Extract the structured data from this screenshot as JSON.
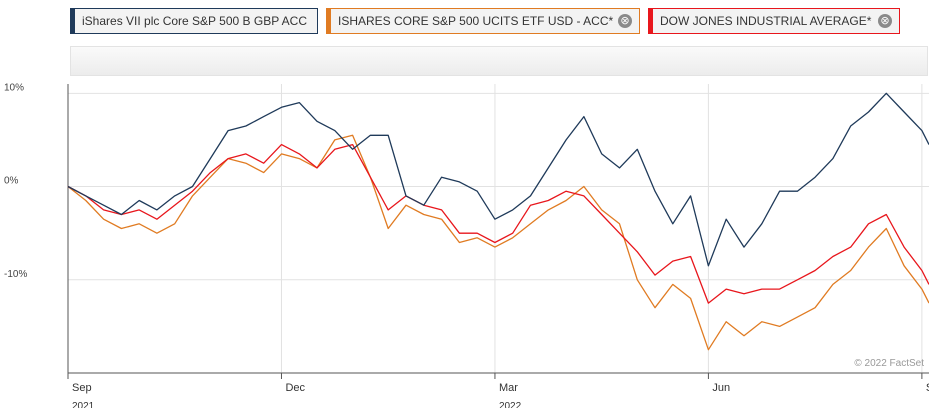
{
  "legend": {
    "items": [
      {
        "label": "iShares VII plc Core S&P 500 B GBP ACC",
        "color": "#1f3a5a",
        "closable": false
      },
      {
        "label": "ISHARES CORE S&P 500 UCITS ETF USD - ACC*",
        "color": "#e07b22",
        "closable": true
      },
      {
        "label": "DOW JONES INDUSTRIAL AVERAGE*",
        "color": "#e8161c",
        "closable": true
      }
    ],
    "close_glyph": "⊗"
  },
  "chart_data": {
    "type": "line",
    "title": "",
    "xlabel": "",
    "ylabel": "",
    "ylim": [
      -20,
      11
    ],
    "xlim": [
      0,
      12.1
    ],
    "x_ticks": [
      {
        "x": 0,
        "label": "Sep",
        "year": "2021"
      },
      {
        "x": 3,
        "label": "Dec",
        "year": ""
      },
      {
        "x": 6,
        "label": "Mar",
        "year": "2022"
      },
      {
        "x": 9,
        "label": "Jun",
        "year": ""
      },
      {
        "x": 12,
        "label": "Sep",
        "year": ""
      }
    ],
    "y_ticks": [
      {
        "value": 10,
        "label": "10%"
      },
      {
        "value": 0,
        "label": "0%"
      },
      {
        "value": -10,
        "label": "-10%"
      }
    ],
    "grid": true,
    "credit": "© 2022 FactSet",
    "series": [
      {
        "name": "iShares VII plc Core S&P 500 B GBP ACC",
        "color": "#1f3a5a",
        "x": [
          0,
          0.25,
          0.5,
          0.75,
          1,
          1.25,
          1.5,
          1.75,
          2,
          2.25,
          2.5,
          2.75,
          3,
          3.25,
          3.5,
          3.75,
          4,
          4.25,
          4.5,
          4.75,
          5,
          5.25,
          5.5,
          5.75,
          6,
          6.25,
          6.5,
          6.75,
          7,
          7.25,
          7.5,
          7.75,
          8,
          8.25,
          8.5,
          8.75,
          9,
          9.25,
          9.5,
          9.75,
          10,
          10.25,
          10.5,
          10.75,
          11,
          11.25,
          11.5,
          11.75,
          12,
          12.1
        ],
        "values": [
          0,
          -1,
          -2,
          -3,
          -1.5,
          -2.5,
          -1,
          0,
          3,
          6,
          6.5,
          7.5,
          8.5,
          9,
          7,
          6,
          4,
          5.5,
          5.5,
          -1,
          -2,
          1,
          0.5,
          -0.5,
          -3.5,
          -2.5,
          -1,
          2,
          5,
          7.5,
          3.5,
          2,
          4,
          -0.5,
          -4,
          -1,
          -8.5,
          -3.5,
          -6.5,
          -4,
          -0.5,
          -0.5,
          1,
          3,
          6.5,
          8,
          10,
          8,
          6,
          4.5
        ]
      },
      {
        "name": "ISHARES CORE S&P 500 UCITS ETF USD - ACC*",
        "color": "#e07b22",
        "x": [
          0,
          0.25,
          0.5,
          0.75,
          1,
          1.25,
          1.5,
          1.75,
          2,
          2.25,
          2.5,
          2.75,
          3,
          3.25,
          3.5,
          3.75,
          4,
          4.25,
          4.5,
          4.75,
          5,
          5.25,
          5.5,
          5.75,
          6,
          6.25,
          6.5,
          6.75,
          7,
          7.25,
          7.5,
          7.75,
          8,
          8.25,
          8.5,
          8.75,
          9,
          9.25,
          9.5,
          9.75,
          10,
          10.25,
          10.5,
          10.75,
          11,
          11.25,
          11.5,
          11.75,
          12,
          12.1
        ],
        "values": [
          0,
          -1.5,
          -3.5,
          -4.5,
          -4,
          -5,
          -4,
          -1,
          1,
          3,
          2.5,
          1.5,
          3.5,
          3,
          2,
          5,
          5.5,
          1,
          -4.5,
          -2,
          -3,
          -3.5,
          -6,
          -5.5,
          -6.5,
          -5.5,
          -4,
          -2.5,
          -1.5,
          0,
          -2.5,
          -4,
          -10,
          -13,
          -10.5,
          -12,
          -17.5,
          -14.5,
          -16,
          -14.5,
          -15,
          -14,
          -13,
          -10.5,
          -9,
          -6.5,
          -4.5,
          -8.5,
          -11,
          -12.5
        ]
      },
      {
        "name": "DOW JONES INDUSTRIAL AVERAGE*",
        "color": "#e8161c",
        "x": [
          0,
          0.25,
          0.5,
          0.75,
          1,
          1.25,
          1.5,
          1.75,
          2,
          2.25,
          2.5,
          2.75,
          3,
          3.25,
          3.5,
          3.75,
          4,
          4.25,
          4.5,
          4.75,
          5,
          5.25,
          5.5,
          5.75,
          6,
          6.25,
          6.5,
          6.75,
          7,
          7.25,
          7.5,
          7.75,
          8,
          8.25,
          8.5,
          8.75,
          9,
          9.25,
          9.5,
          9.75,
          10,
          10.25,
          10.5,
          10.75,
          11,
          11.25,
          11.5,
          11.75,
          12,
          12.1
        ],
        "values": [
          0,
          -1,
          -2.5,
          -3,
          -2.5,
          -3.5,
          -2,
          -0.5,
          1.5,
          3,
          3.5,
          2.5,
          4.5,
          3.5,
          2,
          4,
          4.5,
          1,
          -2.5,
          -1,
          -2,
          -2.5,
          -5,
          -5,
          -6,
          -5,
          -2,
          -1.5,
          -0.5,
          -1,
          -3,
          -5,
          -7,
          -9.5,
          -8,
          -7.5,
          -12.5,
          -11,
          -11.5,
          -11,
          -11,
          -10,
          -9,
          -7.5,
          -6.5,
          -4,
          -3,
          -6.5,
          -9,
          -10.5
        ]
      }
    ]
  }
}
